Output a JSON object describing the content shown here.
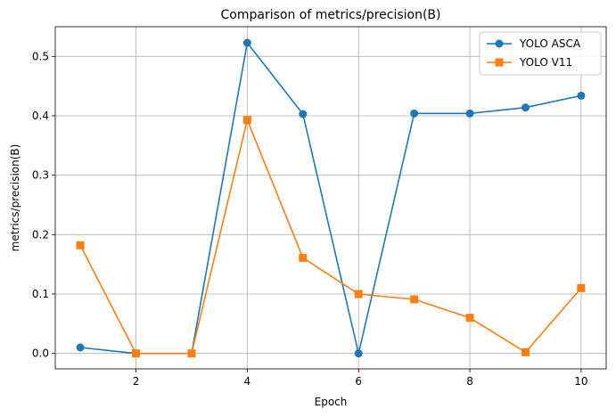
{
  "chart_data": {
    "type": "line",
    "title": "Comparison of metrics/precision(B)",
    "xlabel": "Epoch",
    "ylabel": "metrics/precision(B)",
    "xlim": [
      0.55,
      10.45
    ],
    "ylim": [
      -0.026,
      0.55
    ],
    "x_ticks": [
      2,
      4,
      6,
      8,
      10
    ],
    "y_ticks": [
      0.0,
      0.1,
      0.2,
      0.3,
      0.4,
      0.5
    ],
    "x_tick_labels": [
      "2",
      "4",
      "6",
      "8",
      "10"
    ],
    "y_tick_labels": [
      "0.0",
      "0.1",
      "0.2",
      "0.3",
      "0.4",
      "0.5"
    ],
    "grid": true,
    "legend_position": "top-right",
    "x": [
      1,
      2,
      3,
      4,
      5,
      6,
      7,
      8,
      9,
      10
    ],
    "series": [
      {
        "name": "YOLO ASCA",
        "color": "#1f77b4",
        "marker": "circle",
        "values": [
          0.01,
          0.0,
          0.0,
          0.523,
          0.403,
          0.0,
          0.404,
          0.404,
          0.414,
          0.434
        ]
      },
      {
        "name": "YOLO V11",
        "color": "#ff7f0e",
        "marker": "square",
        "values": [
          0.182,
          0.0,
          0.0,
          0.393,
          0.161,
          0.1,
          0.091,
          0.06,
          0.002,
          0.11
        ]
      }
    ]
  }
}
